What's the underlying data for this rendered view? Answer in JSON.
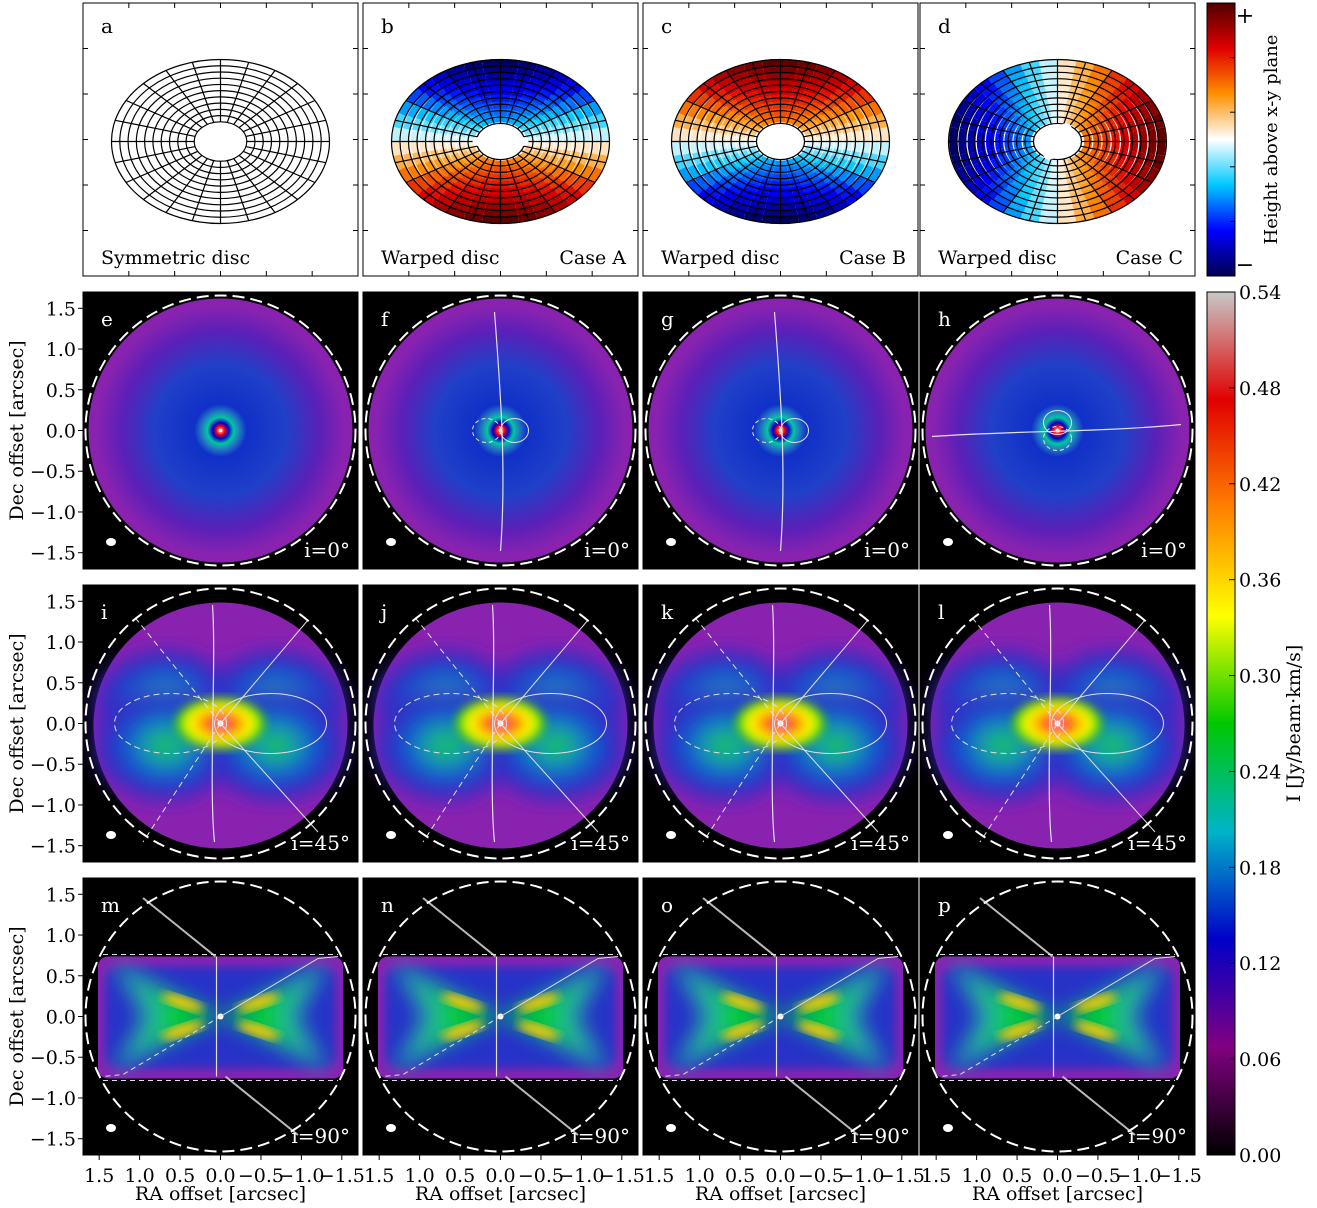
{
  "chart_data": {
    "type": "heatmap",
    "colormap": [
      "#000000",
      "#800080",
      "#0000c8",
      "#00b4c8",
      "#00c800",
      "#ffff00",
      "#ff8000",
      "#e00000",
      "#c8c8c8"
    ],
    "top_panels": [
      {
        "letter": "a",
        "label_left": "Symmetric disc",
        "label_right": "",
        "case": "sym"
      },
      {
        "letter": "b",
        "label_left": "Warped disc",
        "label_right": "Case A",
        "case": "A"
      },
      {
        "letter": "c",
        "label_left": "Warped disc",
        "label_right": "Case B",
        "case": "B"
      },
      {
        "letter": "d",
        "label_left": "Warped disc",
        "label_right": "Case C",
        "case": "C"
      }
    ],
    "height_colorbar": {
      "label": "Height above x-y plane",
      "plus": "+",
      "minus": "−",
      "colors": [
        "#000050",
        "#0000ff",
        "#00c8ff",
        "#ffffff",
        "#ff9000",
        "#e00000",
        "#500000"
      ]
    },
    "intensity_colorbar": {
      "label": "I [Jy/beam·km/s]",
      "ticks": [
        "0.00",
        "0.06",
        "0.12",
        "0.18",
        "0.24",
        "0.30",
        "0.36",
        "0.42",
        "0.48",
        "0.54"
      ],
      "min": 0.0,
      "max": 0.54
    },
    "rows": [
      {
        "inclination": "i=0°",
        "incl_deg": 0,
        "letters": [
          "e",
          "f",
          "g",
          "h"
        ]
      },
      {
        "inclination": "i=45°",
        "incl_deg": 45,
        "letters": [
          "i",
          "j",
          "k",
          "l"
        ]
      },
      {
        "inclination": "i=90°",
        "incl_deg": 90,
        "letters": [
          "m",
          "n",
          "o",
          "p"
        ]
      }
    ],
    "xlabel": "RA offset [arcsec]",
    "ylabel": "Dec offset [arcsec]",
    "xticks": [
      "1.5",
      "1.0",
      "0.5",
      "0.0",
      "−0.5",
      "−1.0",
      "−1.5"
    ],
    "yticks": [
      "1.5",
      "1.0",
      "0.5",
      "0.0",
      "−0.5",
      "−1.0",
      "−1.5"
    ],
    "xlim": [
      1.7,
      -1.7
    ],
    "ylim": [
      -1.7,
      1.7
    ]
  }
}
